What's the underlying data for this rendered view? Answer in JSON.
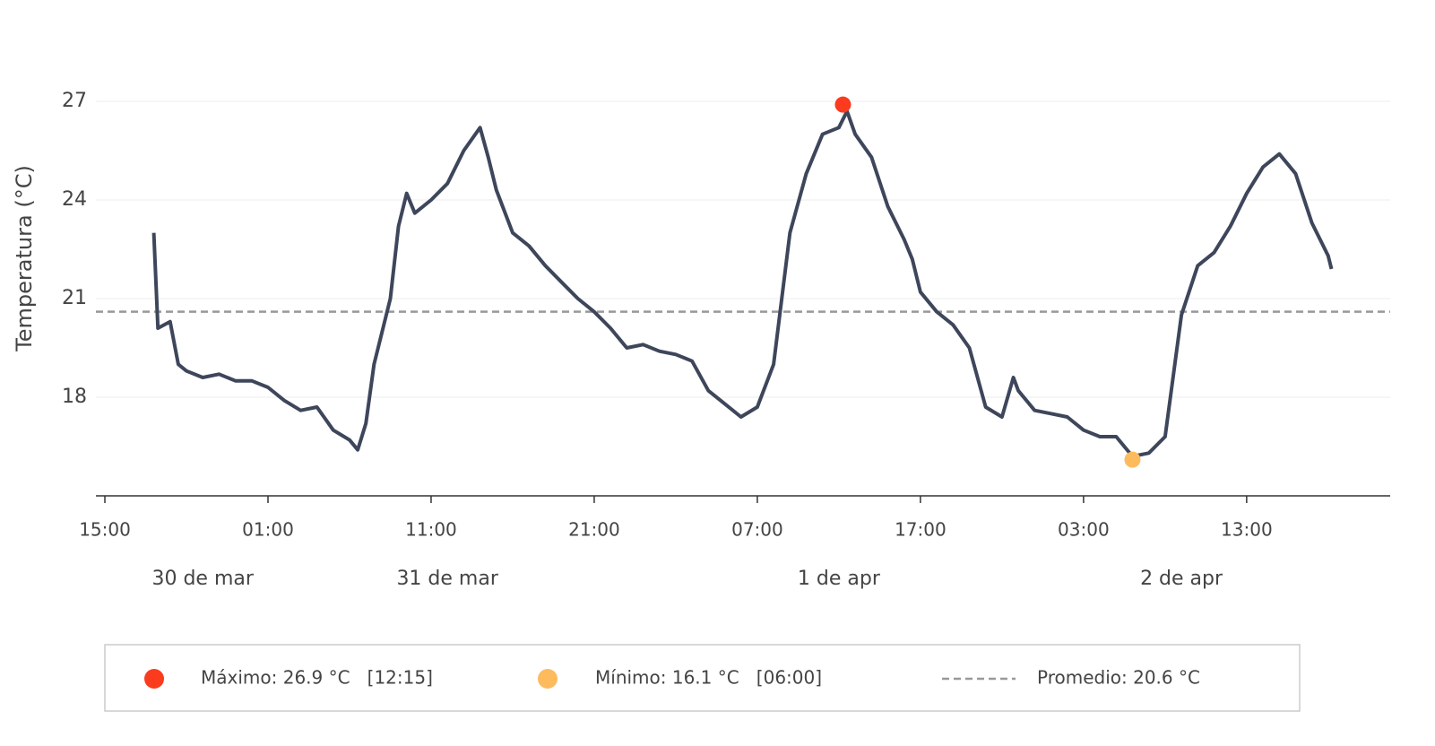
{
  "chart_data": {
    "type": "line",
    "y_label": "Temperatura (°C)",
    "color": "#3e465b",
    "x": [
      3,
      3.25,
      4,
      4.5,
      5,
      6,
      7,
      8,
      9,
      10,
      11,
      12,
      13,
      14,
      15,
      15.5,
      16,
      16.5,
      17,
      17.5,
      18,
      18.5,
      19,
      20,
      21,
      22,
      23,
      23.5,
      24,
      25,
      26,
      27,
      28,
      29,
      30,
      31,
      32,
      33,
      34,
      35,
      36,
      37,
      38,
      39,
      40,
      41,
      42,
      43,
      44,
      45,
      45.5,
      46,
      47,
      48,
      49,
      49.5,
      50,
      51,
      52,
      53,
      54,
      55,
      55.7,
      56,
      57,
      58,
      59,
      60,
      61,
      62,
      62.5,
      63,
      64,
      65,
      66,
      67,
      68,
      69,
      70,
      71,
      72,
      73,
      74,
      75,
      75.2
    ],
    "values": [
      23.0,
      20.1,
      20.3,
      19.0,
      18.8,
      18.6,
      18.7,
      18.5,
      18.5,
      18.3,
      17.9,
      17.6,
      17.7,
      17.0,
      16.7,
      16.4,
      17.2,
      19.0,
      20.0,
      21.0,
      23.2,
      24.2,
      23.6,
      24.0,
      24.5,
      25.5,
      26.2,
      25.3,
      24.3,
      23.0,
      22.6,
      22.0,
      21.5,
      21.0,
      20.6,
      20.1,
      19.5,
      19.6,
      19.4,
      19.3,
      19.1,
      18.2,
      17.8,
      17.4,
      17.7,
      19.0,
      23.0,
      24.8,
      26.0,
      26.2,
      26.7,
      26.0,
      25.3,
      23.8,
      22.8,
      22.2,
      21.2,
      20.6,
      20.2,
      19.5,
      17.7,
      17.4,
      18.6,
      18.2,
      17.6,
      17.5,
      17.4,
      17.0,
      16.8,
      16.8,
      16.5,
      16.2,
      16.3,
      16.8,
      20.5,
      22.0,
      22.4,
      23.2,
      24.2,
      25.0,
      25.4,
      24.8,
      23.3,
      22.3,
      21.9
    ],
    "xlim": [
      -0.55,
      78.8
    ],
    "ylim": [
      15,
      28.5
    ],
    "yticks": [
      18,
      21,
      24,
      27
    ],
    "xticks": [
      {
        "value": 0,
        "label": "15:00"
      },
      {
        "value": 10,
        "label": "01:00"
      },
      {
        "value": 20,
        "label": "11:00"
      },
      {
        "value": 30,
        "label": "21:00"
      },
      {
        "value": 40,
        "label": "07:00"
      },
      {
        "value": 50,
        "label": "17:00"
      },
      {
        "value": 60,
        "label": "03:00"
      },
      {
        "value": 70,
        "label": "13:00"
      }
    ],
    "date_labels": [
      {
        "value": 6,
        "label": "30 de mar"
      },
      {
        "value": 21,
        "label": "31 de mar"
      },
      {
        "value": 45,
        "label": "1 de apr"
      },
      {
        "value": 66,
        "label": "2 de apr"
      }
    ],
    "grid": true,
    "max": {
      "x": 45.25,
      "value": 26.9,
      "color": "#fb3b1e",
      "label": "Máximo: 26.9 °C   [12:15]"
    },
    "min": {
      "x": 63,
      "value": 16.1,
      "color": "#fdbb5e",
      "label": "Mínimo: 16.1 °C   [06:00]"
    },
    "average": {
      "value": 20.6,
      "color": "#999999",
      "label": "Promedio: 20.6 °C"
    }
  }
}
